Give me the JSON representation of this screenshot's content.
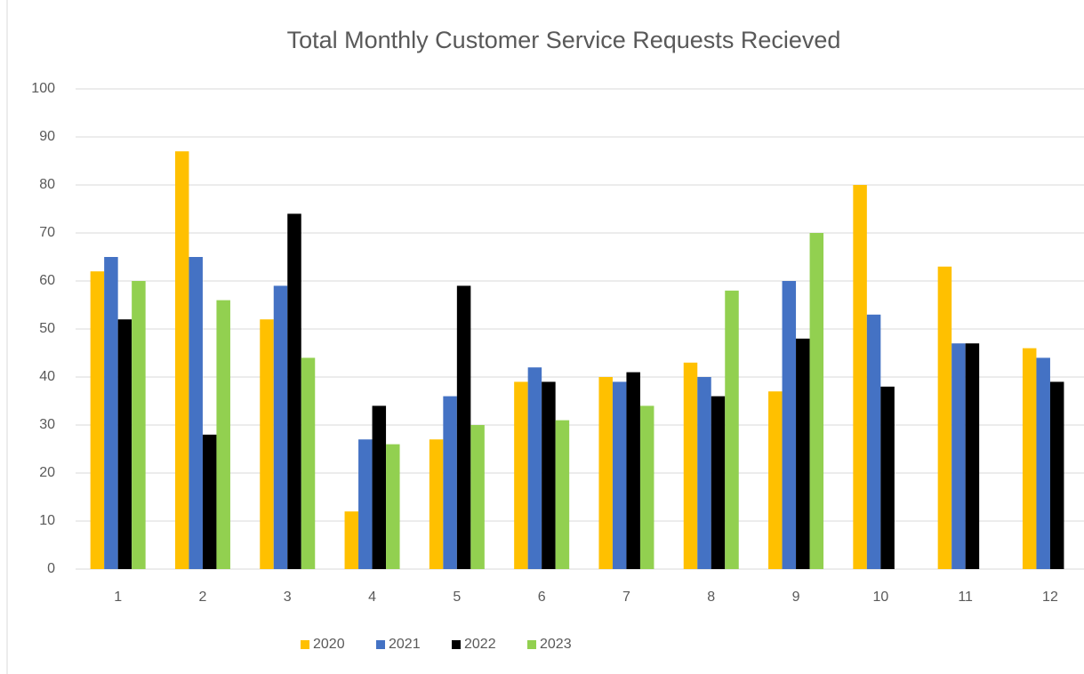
{
  "chart_data": {
    "type": "bar",
    "title": "Total Monthly Customer Service Requests Recieved",
    "categories": [
      1,
      2,
      3,
      4,
      5,
      6,
      7,
      8,
      9,
      10,
      11,
      12
    ],
    "series": [
      {
        "name": "2020",
        "color": "#ffc000",
        "values": [
          62,
          87,
          52,
          12,
          27,
          39,
          40,
          43,
          37,
          80,
          63,
          46
        ]
      },
      {
        "name": "2021",
        "color": "#4472c4",
        "values": [
          65,
          65,
          59,
          27,
          36,
          42,
          39,
          40,
          60,
          53,
          47,
          44
        ]
      },
      {
        "name": "2022",
        "color": "#000000",
        "values": [
          52,
          28,
          74,
          34,
          59,
          39,
          41,
          36,
          48,
          38,
          47,
          39
        ]
      },
      {
        "name": "2023",
        "color": "#92d050",
        "values": [
          60,
          56,
          44,
          26,
          30,
          31,
          34,
          58,
          70,
          null,
          null,
          null
        ]
      }
    ],
    "ylim": [
      0,
      100
    ],
    "yticks": [
      0,
      10,
      20,
      30,
      40,
      50,
      60,
      70,
      80,
      90,
      100
    ],
    "grid": true,
    "legend": "bottom"
  }
}
